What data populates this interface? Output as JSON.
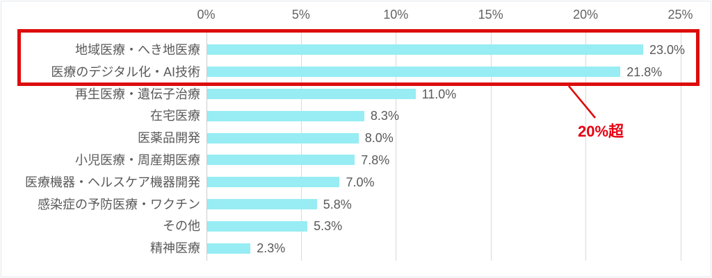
{
  "chart_data": {
    "type": "bar",
    "orientation": "horizontal",
    "categories": [
      "地域医療・へき地医療",
      "医療のデジタル化・AI技術",
      "再生医療・遺伝子治療",
      "在宅医療",
      "医薬品開発",
      "小児医療・周産期医療",
      "医療機器・ヘルスケア機器開発",
      "感染症の予防医療・ワクチン",
      "その他",
      "精神医療"
    ],
    "values": [
      23.0,
      21.8,
      11.0,
      8.3,
      8.0,
      7.8,
      7.0,
      5.8,
      5.3,
      2.3
    ],
    "value_labels": [
      "23.0%",
      "21.8%",
      "11.0%",
      "8.3%",
      "8.0%",
      "7.8%",
      "7.0%",
      "5.8%",
      "5.3%",
      "2.3%"
    ],
    "x_ticks": [
      "0%",
      "5%",
      "10%",
      "15%",
      "20%",
      "25%"
    ],
    "x_tick_values": [
      0,
      5,
      10,
      15,
      20,
      25
    ],
    "xlim": [
      0,
      25
    ],
    "grid": true,
    "legend": "none",
    "bar_color": "#97edf3",
    "annotation": {
      "label": "20%超",
      "highlighted_categories": [
        "地域医療・へき地医療",
        "医療のデジタル化・AI技術"
      ],
      "box_color": "#dd0c0c",
      "label_color": "#e60012"
    }
  }
}
